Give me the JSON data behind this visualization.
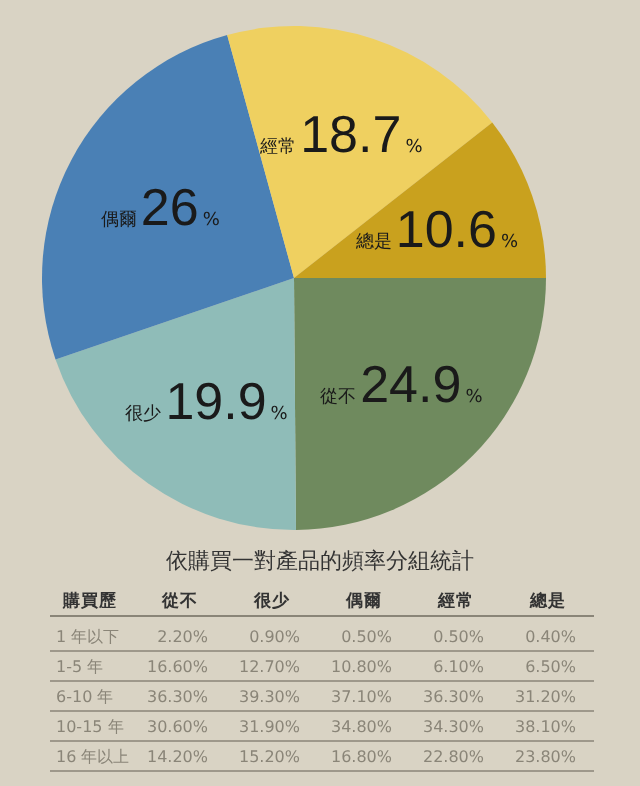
{
  "chart_data": [
    {
      "type": "pie",
      "categories": [
        "從不",
        "很少",
        "偶爾",
        "經常",
        "總是"
      ],
      "values": [
        24.9,
        19.9,
        26,
        18.7,
        10.6
      ],
      "colors": [
        "#6f8a5e",
        "#8fbcb8",
        "#4a80b5",
        "#efd060",
        "#c9a11e"
      ],
      "value_labels": [
        "24.9%",
        "19.9%",
        "26%",
        "18.7%",
        "10.6%"
      ]
    },
    {
      "type": "heatmap",
      "title": "依購買一對產品的頻率分組統計",
      "ylabel": "購買歷",
      "categories": [
        "從不",
        "很少",
        "偶爾",
        "經常",
        "總是"
      ],
      "y_categories": [
        "1 年以下",
        "1-5 年",
        "6-10 年",
        "10-15 年",
        "16 年以上"
      ],
      "cells": [
        [
          2.2,
          0.9,
          0.5,
          0.5,
          0.4
        ],
        [
          16.6,
          12.7,
          10.8,
          6.1,
          6.5
        ],
        [
          36.3,
          39.3,
          37.1,
          36.3,
          31.2
        ],
        [
          30.6,
          31.9,
          34.8,
          34.3,
          38.1
        ],
        [
          14.2,
          15.2,
          16.8,
          22.8,
          23.8
        ]
      ],
      "cell_labels": [
        [
          "2.20%",
          "0.90%",
          "0.50%",
          "0.50%",
          "0.40%"
        ],
        [
          "16.60%",
          "12.70%",
          "10.80%",
          "6.10%",
          "6.50%"
        ],
        [
          "36.30%",
          "39.30%",
          "37.10%",
          "36.30%",
          "31.20%"
        ],
        [
          "30.60%",
          "31.90%",
          "34.80%",
          "34.30%",
          "38.10%"
        ],
        [
          "14.20%",
          "15.20%",
          "16.80%",
          "22.80%",
          "23.80%"
        ]
      ]
    }
  ]
}
